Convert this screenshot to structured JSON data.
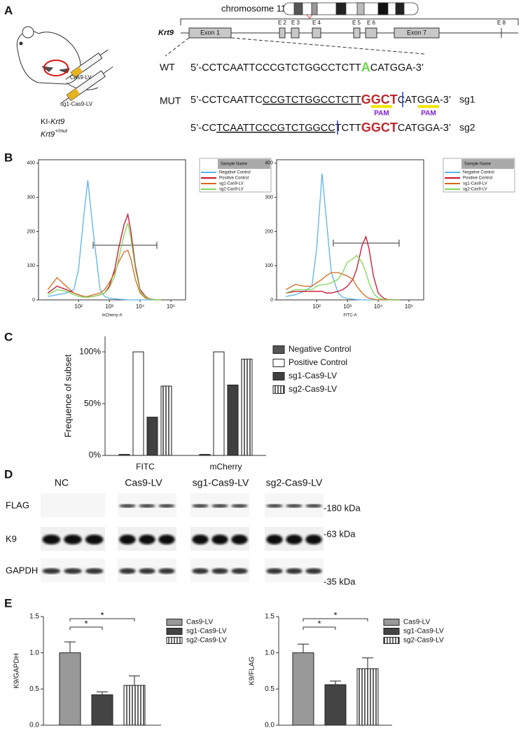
{
  "panel_labels": [
    "A",
    "B",
    "C",
    "D",
    "E"
  ],
  "gene_map": {
    "chromosome": "chromosome 11",
    "gene": "Krt9",
    "exons": [
      "Exon 1",
      "E 2",
      "E 3",
      "E 4",
      "E 5",
      "E 6",
      "Exon 7",
      "E 8"
    ]
  },
  "mouse": {
    "injections": [
      "Cas9-LV",
      "sg1-Cas9-LV"
    ],
    "model": [
      "KI-",
      "Krt9"
    ],
    "genotype": [
      "Krt9",
      "+/mut"
    ]
  },
  "sequences": {
    "wt": {
      "label": "WT",
      "parts": [
        "5’-CCTCAATTCCCGTCTGGCCTCTT",
        "A",
        "CATGGA-3’"
      ]
    },
    "sg1": {
      "label": "MUT",
      "parts": [
        "5’-CCTCAATTC",
        "CCGTCTGGCCTCTT",
        "GGCT",
        "CATGGA-3’"
      ],
      "name": "sg1"
    },
    "sg2": {
      "parts": [
        "5’-CC",
        "TCAATTCCCGTCTGGCC",
        "TCTT",
        "GGCT",
        "CATGGA-3’"
      ],
      "name": "sg2"
    },
    "pam": [
      "PAM",
      "PAM"
    ]
  },
  "chart_data": [
    {
      "type": "line",
      "xlabel": "mCherry-A",
      "xlog": true,
      "legend_title": "Sample Name",
      "x": [
        10,
        20,
        40,
        70,
        100,
        150,
        200,
        300,
        500,
        700,
        1000,
        1500,
        2000,
        3000,
        4000,
        5000,
        7000,
        10000,
        15000,
        20000,
        30000,
        50000
      ],
      "xlim": [
        5,
        300000
      ],
      "xticks": [
        {
          "value": 100,
          "label": "10²"
        },
        {
          "value": 1000,
          "label": "10³"
        },
        {
          "value": 10000,
          "label": "10⁴"
        },
        {
          "value": 100000,
          "label": "10⁵"
        }
      ],
      "ylim": [
        0,
        410
      ],
      "yticks": [
        0,
        100,
        200,
        300,
        400
      ],
      "series": [
        {
          "name": "Negative Control",
          "color": "#5bb4e5",
          "values": [
            10,
            15,
            20,
            30,
            90,
            250,
            350,
            200,
            30,
            10,
            5,
            3,
            2,
            1,
            0,
            0,
            0,
            0,
            0,
            0,
            0,
            0
          ]
        },
        {
          "name": "Positive Control",
          "color": "#c8102e",
          "values": [
            20,
            40,
            30,
            20,
            15,
            10,
            8,
            10,
            15,
            20,
            40,
            90,
            150,
            220,
            250,
            200,
            100,
            30,
            10,
            3,
            1,
            0
          ]
        },
        {
          "name": "sg1-Cas9-LV",
          "color": "#d2691e",
          "values": [
            30,
            65,
            40,
            20,
            15,
            10,
            10,
            15,
            20,
            30,
            50,
            80,
            110,
            140,
            145,
            120,
            60,
            20,
            5,
            2,
            1,
            0
          ]
        },
        {
          "name": "sg2-Cas9-LV",
          "color": "#7ed957",
          "values": [
            15,
            30,
            25,
            15,
            10,
            8,
            8,
            10,
            15,
            20,
            35,
            70,
            120,
            190,
            225,
            180,
            90,
            25,
            8,
            2,
            1,
            0
          ]
        }
      ]
    },
    {
      "type": "line",
      "xlabel": "FITC-A",
      "xlog": true,
      "legend_title": "Sample Name",
      "x": [
        10,
        20,
        40,
        70,
        100,
        150,
        200,
        300,
        500,
        700,
        1000,
        1500,
        2000,
        3000,
        4000,
        5000,
        7000,
        10000,
        15000,
        20000,
        30000,
        50000
      ],
      "xlim": [
        5,
        300000
      ],
      "xticks": [
        {
          "value": 100,
          "label": "10²"
        },
        {
          "value": 1000,
          "label": "10³"
        },
        {
          "value": 10000,
          "label": "10⁴"
        },
        {
          "value": 100000,
          "label": "10⁵"
        }
      ],
      "ylim": [
        0,
        410
      ],
      "yticks": [
        0,
        100,
        200,
        300,
        400
      ],
      "series": [
        {
          "name": "Negative Control",
          "color": "#5bb4e5",
          "values": [
            10,
            15,
            25,
            40,
            150,
            370,
            250,
            80,
            20,
            8,
            4,
            2,
            1,
            0,
            0,
            0,
            0,
            0,
            0,
            0,
            0,
            0
          ]
        },
        {
          "name": "Positive Control",
          "color": "#c8102e",
          "values": [
            20,
            25,
            25,
            25,
            25,
            25,
            20,
            20,
            25,
            30,
            40,
            60,
            90,
            160,
            185,
            150,
            70,
            20,
            5,
            1,
            0,
            0
          ]
        },
        {
          "name": "sg1-Cas9-LV",
          "color": "#d2691e",
          "values": [
            30,
            45,
            40,
            40,
            50,
            60,
            70,
            80,
            80,
            75,
            70,
            60,
            40,
            20,
            10,
            5,
            2,
            0,
            0,
            0,
            0,
            0
          ]
        },
        {
          "name": "sg2-Cas9-LV",
          "color": "#7ed957",
          "values": [
            20,
            30,
            30,
            30,
            40,
            45,
            45,
            50,
            60,
            80,
            110,
            120,
            130,
            110,
            80,
            50,
            20,
            5,
            1,
            0,
            0,
            0
          ]
        }
      ]
    },
    {
      "type": "bar",
      "ylabel": "Frequence of subset",
      "categories": [
        "FITC",
        "mCherry"
      ],
      "ylim": [
        0,
        115
      ],
      "yticks": [
        {
          "value": 0,
          "label": "0%"
        },
        {
          "value": 50,
          "label": "50%"
        },
        {
          "value": 100,
          "label": "100%"
        }
      ],
      "series": [
        {
          "name": "Negative Control",
          "color": "#555555",
          "values": [
            1,
            1
          ]
        },
        {
          "name": "Positive Control",
          "color": "#ffffff",
          "values": [
            100,
            100
          ]
        },
        {
          "name": "sg1-Cas9-LV",
          "color": "#404040",
          "values": [
            37,
            68
          ]
        },
        {
          "name": "sg2-Cas9-LV",
          "color": "#ffffff",
          "hatch": "vertical",
          "values": [
            67,
            93
          ]
        }
      ]
    },
    {
      "type": "bar",
      "ylabel": "K9/GAPDH",
      "annotations": [
        "*",
        "*"
      ],
      "ylim": [
        0,
        1.5
      ],
      "yticks": [
        {
          "value": 0,
          "label": "0.0"
        },
        {
          "value": 0.5,
          "label": "0.5"
        },
        {
          "value": 1,
          "label": "1.0"
        },
        {
          "value": 1.5,
          "label": "1.5"
        }
      ],
      "series": [
        {
          "name": "Cas9-LV",
          "color": "#999999",
          "values": [
            1.0
          ],
          "errors": [
            0.15
          ]
        },
        {
          "name": "sg1-Cas9-LV",
          "color": "#444444",
          "values": [
            0.42
          ],
          "errors": [
            0.04
          ]
        },
        {
          "name": "sg2-Cas9-LV",
          "color": "#ffffff",
          "hatch": "vertical",
          "values": [
            0.55
          ],
          "errors": [
            0.13
          ]
        }
      ]
    },
    {
      "type": "bar",
      "ylabel": "K9/FLAG",
      "annotations": [
        "*",
        "*"
      ],
      "ylim": [
        0,
        1.5
      ],
      "yticks": [
        {
          "value": 0,
          "label": "0.0"
        },
        {
          "value": 0.5,
          "label": "0.5"
        },
        {
          "value": 1,
          "label": "1.0"
        },
        {
          "value": 1.5,
          "label": "1.5"
        }
      ],
      "series": [
        {
          "name": "Cas9-LV",
          "color": "#999999",
          "values": [
            1.0
          ],
          "errors": [
            0.12
          ]
        },
        {
          "name": "sg1-Cas9-LV",
          "color": "#444444",
          "values": [
            0.56
          ],
          "errors": [
            0.05
          ]
        },
        {
          "name": "sg2-Cas9-LV",
          "color": "#ffffff",
          "hatch": "vertical",
          "values": [
            0.78
          ],
          "errors": [
            0.15
          ]
        }
      ]
    }
  ],
  "western_blot": {
    "lanes": [
      "NC",
      "Cas9-LV",
      "sg1-Cas9-LV",
      "sg2-Cas9-LV"
    ],
    "rows": [
      "FLAG",
      "K9",
      "GAPDH"
    ],
    "markers": [
      "-180 kDa",
      "-63 kDa",
      "-35 kDa"
    ]
  }
}
